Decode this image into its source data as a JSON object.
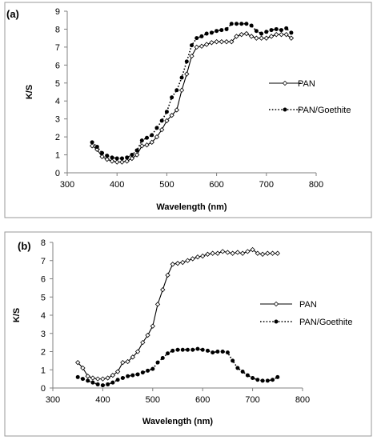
{
  "chart_data": [
    {
      "panel_label": "(a)",
      "type": "line",
      "xlabel": "Wavelength (nm)",
      "ylabel": "K/S",
      "xlim": [
        300,
        800
      ],
      "ylim": [
        0,
        9
      ],
      "xticks": [
        300,
        400,
        500,
        600,
        700,
        800
      ],
      "yticks": [
        0,
        1,
        2,
        3,
        4,
        5,
        6,
        7,
        8,
        9
      ],
      "grid": false,
      "legend_position": "right",
      "x": [
        350,
        360,
        370,
        380,
        390,
        400,
        410,
        420,
        430,
        440,
        450,
        460,
        470,
        480,
        490,
        500,
        510,
        520,
        530,
        540,
        550,
        560,
        570,
        580,
        590,
        600,
        610,
        620,
        630,
        640,
        650,
        660,
        670,
        680,
        690,
        700,
        710,
        720,
        730,
        740,
        750
      ],
      "series": [
        {
          "name": "PAN",
          "line_style": "solid",
          "marker": "open-diamond",
          "values": [
            1.5,
            1.3,
            0.9,
            0.75,
            0.65,
            0.6,
            0.6,
            0.65,
            0.8,
            1.0,
            1.5,
            1.55,
            1.7,
            2.0,
            2.4,
            2.9,
            3.2,
            3.5,
            4.6,
            5.5,
            6.5,
            7.0,
            7.05,
            7.15,
            7.25,
            7.3,
            7.3,
            7.3,
            7.3,
            7.6,
            7.7,
            7.75,
            7.6,
            7.5,
            7.5,
            7.5,
            7.6,
            7.7,
            7.7,
            7.7,
            7.5
          ]
        },
        {
          "name": "PAN/Goethite",
          "line_style": "dotted",
          "marker": "filled-circle",
          "values": [
            1.7,
            1.45,
            1.1,
            0.95,
            0.85,
            0.8,
            0.8,
            0.85,
            1.0,
            1.25,
            1.8,
            1.95,
            2.1,
            2.5,
            2.9,
            3.4,
            4.2,
            4.6,
            5.3,
            6.2,
            7.1,
            7.5,
            7.6,
            7.75,
            7.8,
            7.9,
            7.95,
            8.0,
            8.3,
            8.3,
            8.3,
            8.3,
            8.2,
            7.9,
            7.75,
            7.85,
            7.95,
            8.0,
            7.95,
            8.05,
            7.8
          ]
        }
      ]
    },
    {
      "panel_label": "(b)",
      "type": "line",
      "xlabel": "Wavelength (nm)",
      "ylabel": "K/S",
      "xlim": [
        300,
        800
      ],
      "ylim": [
        0,
        8
      ],
      "xticks": [
        300,
        400,
        500,
        600,
        700,
        800
      ],
      "yticks": [
        0,
        1,
        2,
        3,
        4,
        5,
        6,
        7,
        8
      ],
      "grid": false,
      "legend_position": "right",
      "x": [
        350,
        360,
        370,
        380,
        390,
        400,
        410,
        420,
        430,
        440,
        450,
        460,
        470,
        480,
        490,
        500,
        510,
        520,
        530,
        540,
        550,
        560,
        570,
        580,
        590,
        600,
        610,
        620,
        630,
        640,
        650,
        660,
        670,
        680,
        690,
        700,
        710,
        720,
        730,
        740,
        750
      ],
      "series": [
        {
          "name": "PAN",
          "line_style": "solid",
          "marker": "open-diamond",
          "values": [
            1.4,
            1.1,
            0.65,
            0.55,
            0.5,
            0.5,
            0.55,
            0.7,
            0.9,
            1.4,
            1.45,
            1.7,
            2.0,
            2.5,
            2.9,
            3.4,
            4.6,
            5.4,
            6.2,
            6.8,
            6.85,
            6.9,
            7.0,
            7.1,
            7.2,
            7.25,
            7.35,
            7.4,
            7.4,
            7.5,
            7.45,
            7.4,
            7.45,
            7.4,
            7.5,
            7.6,
            7.4,
            7.35,
            7.4,
            7.4,
            7.4
          ]
        },
        {
          "name": "PAN/Goethite",
          "line_style": "dotted",
          "marker": "filled-circle",
          "values": [
            0.6,
            0.5,
            0.4,
            0.3,
            0.2,
            0.15,
            0.2,
            0.3,
            0.45,
            0.55,
            0.65,
            0.7,
            0.75,
            0.85,
            0.95,
            1.05,
            1.4,
            1.65,
            1.9,
            2.05,
            2.1,
            2.1,
            2.1,
            2.1,
            2.15,
            2.1,
            2.05,
            1.95,
            2.0,
            2.0,
            1.95,
            1.5,
            1.1,
            0.9,
            0.7,
            0.55,
            0.45,
            0.4,
            0.4,
            0.45,
            0.6
          ]
        }
      ]
    }
  ]
}
